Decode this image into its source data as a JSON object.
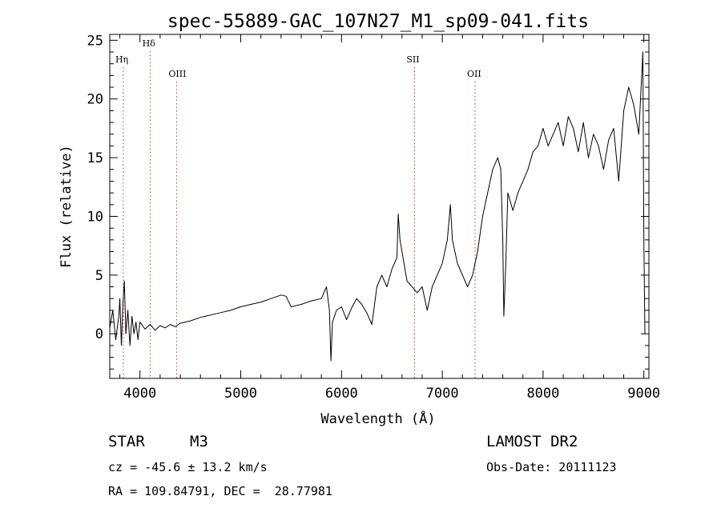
{
  "chart_data": {
    "type": "line",
    "title": "spec-55889-GAC_107N27_M1_sp09-041.fits",
    "xlabel": "Wavelength (Å)",
    "ylabel": "Flux (relative)",
    "xlim": [
      3700,
      9050
    ],
    "ylim": [
      -3.8,
      25.5
    ],
    "xticks": [
      4000,
      5000,
      6000,
      7000,
      8000,
      9000
    ],
    "yticks": [
      0,
      5,
      10,
      15,
      20,
      25
    ],
    "grid": false,
    "line_color": "#000000",
    "marker_color": "#cc3333",
    "series": [
      {
        "values": [
          [
            3700,
            0.5
          ],
          [
            3730,
            2.0
          ],
          [
            3760,
            -0.5
          ],
          [
            3790,
            1.5
          ],
          [
            3800,
            3.0
          ],
          [
            3815,
            -1.0
          ],
          [
            3830,
            2.5
          ],
          [
            3845,
            4.5
          ],
          [
            3860,
            0.0
          ],
          [
            3880,
            2.0
          ],
          [
            3900,
            -1.0
          ],
          [
            3920,
            1.5
          ],
          [
            3940,
            0.0
          ],
          [
            3960,
            1.0
          ],
          [
            3980,
            -0.5
          ],
          [
            4000,
            1.0
          ],
          [
            4050,
            0.4
          ],
          [
            4100,
            0.8
          ],
          [
            4150,
            0.3
          ],
          [
            4200,
            0.7
          ],
          [
            4250,
            0.5
          ],
          [
            4300,
            0.8
          ],
          [
            4350,
            0.6
          ],
          [
            4400,
            0.9
          ],
          [
            4500,
            1.1
          ],
          [
            4600,
            1.4
          ],
          [
            4700,
            1.6
          ],
          [
            4800,
            1.8
          ],
          [
            4900,
            2.0
          ],
          [
            5000,
            2.3
          ],
          [
            5100,
            2.5
          ],
          [
            5200,
            2.7
          ],
          [
            5300,
            3.0
          ],
          [
            5400,
            3.3
          ],
          [
            5450,
            3.2
          ],
          [
            5500,
            2.3
          ],
          [
            5600,
            2.5
          ],
          [
            5700,
            2.8
          ],
          [
            5800,
            3.0
          ],
          [
            5850,
            4.0
          ],
          [
            5880,
            2.0
          ],
          [
            5895,
            -2.3
          ],
          [
            5910,
            1.0
          ],
          [
            5950,
            2.0
          ],
          [
            6000,
            2.3
          ],
          [
            6050,
            1.2
          ],
          [
            6100,
            2.2
          ],
          [
            6150,
            3.0
          ],
          [
            6200,
            2.5
          ],
          [
            6250,
            1.8
          ],
          [
            6300,
            0.8
          ],
          [
            6320,
            2.0
          ],
          [
            6350,
            4.0
          ],
          [
            6400,
            5.0
          ],
          [
            6450,
            4.0
          ],
          [
            6500,
            5.5
          ],
          [
            6550,
            6.5
          ],
          [
            6563,
            10.2
          ],
          [
            6580,
            8.0
          ],
          [
            6620,
            6.0
          ],
          [
            6650,
            4.5
          ],
          [
            6700,
            4.0
          ],
          [
            6750,
            3.5
          ],
          [
            6800,
            4.0
          ],
          [
            6850,
            2.0
          ],
          [
            6900,
            4.0
          ],
          [
            6950,
            5.0
          ],
          [
            7000,
            6.0
          ],
          [
            7050,
            8.0
          ],
          [
            7080,
            11.0
          ],
          [
            7100,
            8.0
          ],
          [
            7150,
            6.0
          ],
          [
            7200,
            5.0
          ],
          [
            7250,
            4.0
          ],
          [
            7300,
            5.0
          ],
          [
            7350,
            7.0
          ],
          [
            7400,
            10.0
          ],
          [
            7450,
            12.0
          ],
          [
            7500,
            14.0
          ],
          [
            7550,
            15.0
          ],
          [
            7580,
            14.0
          ],
          [
            7600,
            8.0
          ],
          [
            7610,
            1.5
          ],
          [
            7630,
            6.0
          ],
          [
            7650,
            12.0
          ],
          [
            7700,
            10.5
          ],
          [
            7750,
            12.0
          ],
          [
            7800,
            13.0
          ],
          [
            7850,
            14.0
          ],
          [
            7900,
            15.5
          ],
          [
            7950,
            16.0
          ],
          [
            8000,
            17.5
          ],
          [
            8050,
            16.0
          ],
          [
            8100,
            17.0
          ],
          [
            8150,
            18.0
          ],
          [
            8200,
            16.0
          ],
          [
            8250,
            18.5
          ],
          [
            8300,
            17.5
          ],
          [
            8350,
            15.5
          ],
          [
            8400,
            18.0
          ],
          [
            8450,
            15.0
          ],
          [
            8500,
            17.0
          ],
          [
            8550,
            16.0
          ],
          [
            8600,
            14.0
          ],
          [
            8650,
            16.5
          ],
          [
            8700,
            17.5
          ],
          [
            8750,
            13.0
          ],
          [
            8800,
            19.0
          ],
          [
            8850,
            21.0
          ],
          [
            8900,
            19.5
          ],
          [
            8950,
            17.0
          ],
          [
            8970,
            20.5
          ],
          [
            8990,
            24.0
          ],
          [
            9000,
            8.0
          ],
          [
            9010,
            0.0
          ]
        ]
      }
    ],
    "markers": [
      {
        "label": "Hη",
        "x": 3835,
        "row": 1
      },
      {
        "label": "Hδ",
        "x": 4102,
        "row": 0
      },
      {
        "label": "OIII",
        "x": 4363,
        "row": 2
      },
      {
        "label": "SII",
        "x": 6724,
        "row": 1
      },
      {
        "label": "OII",
        "x": 7325,
        "row": 2
      }
    ]
  },
  "info": {
    "class": "STAR",
    "subclass": "M3",
    "survey": "LAMOST DR2",
    "cz": "cz = -45.6 ± 13.2 km/s",
    "obs_date": "Obs-Date: 20111123",
    "radec": "RA = 109.84791, DEC =  28.77981"
  }
}
